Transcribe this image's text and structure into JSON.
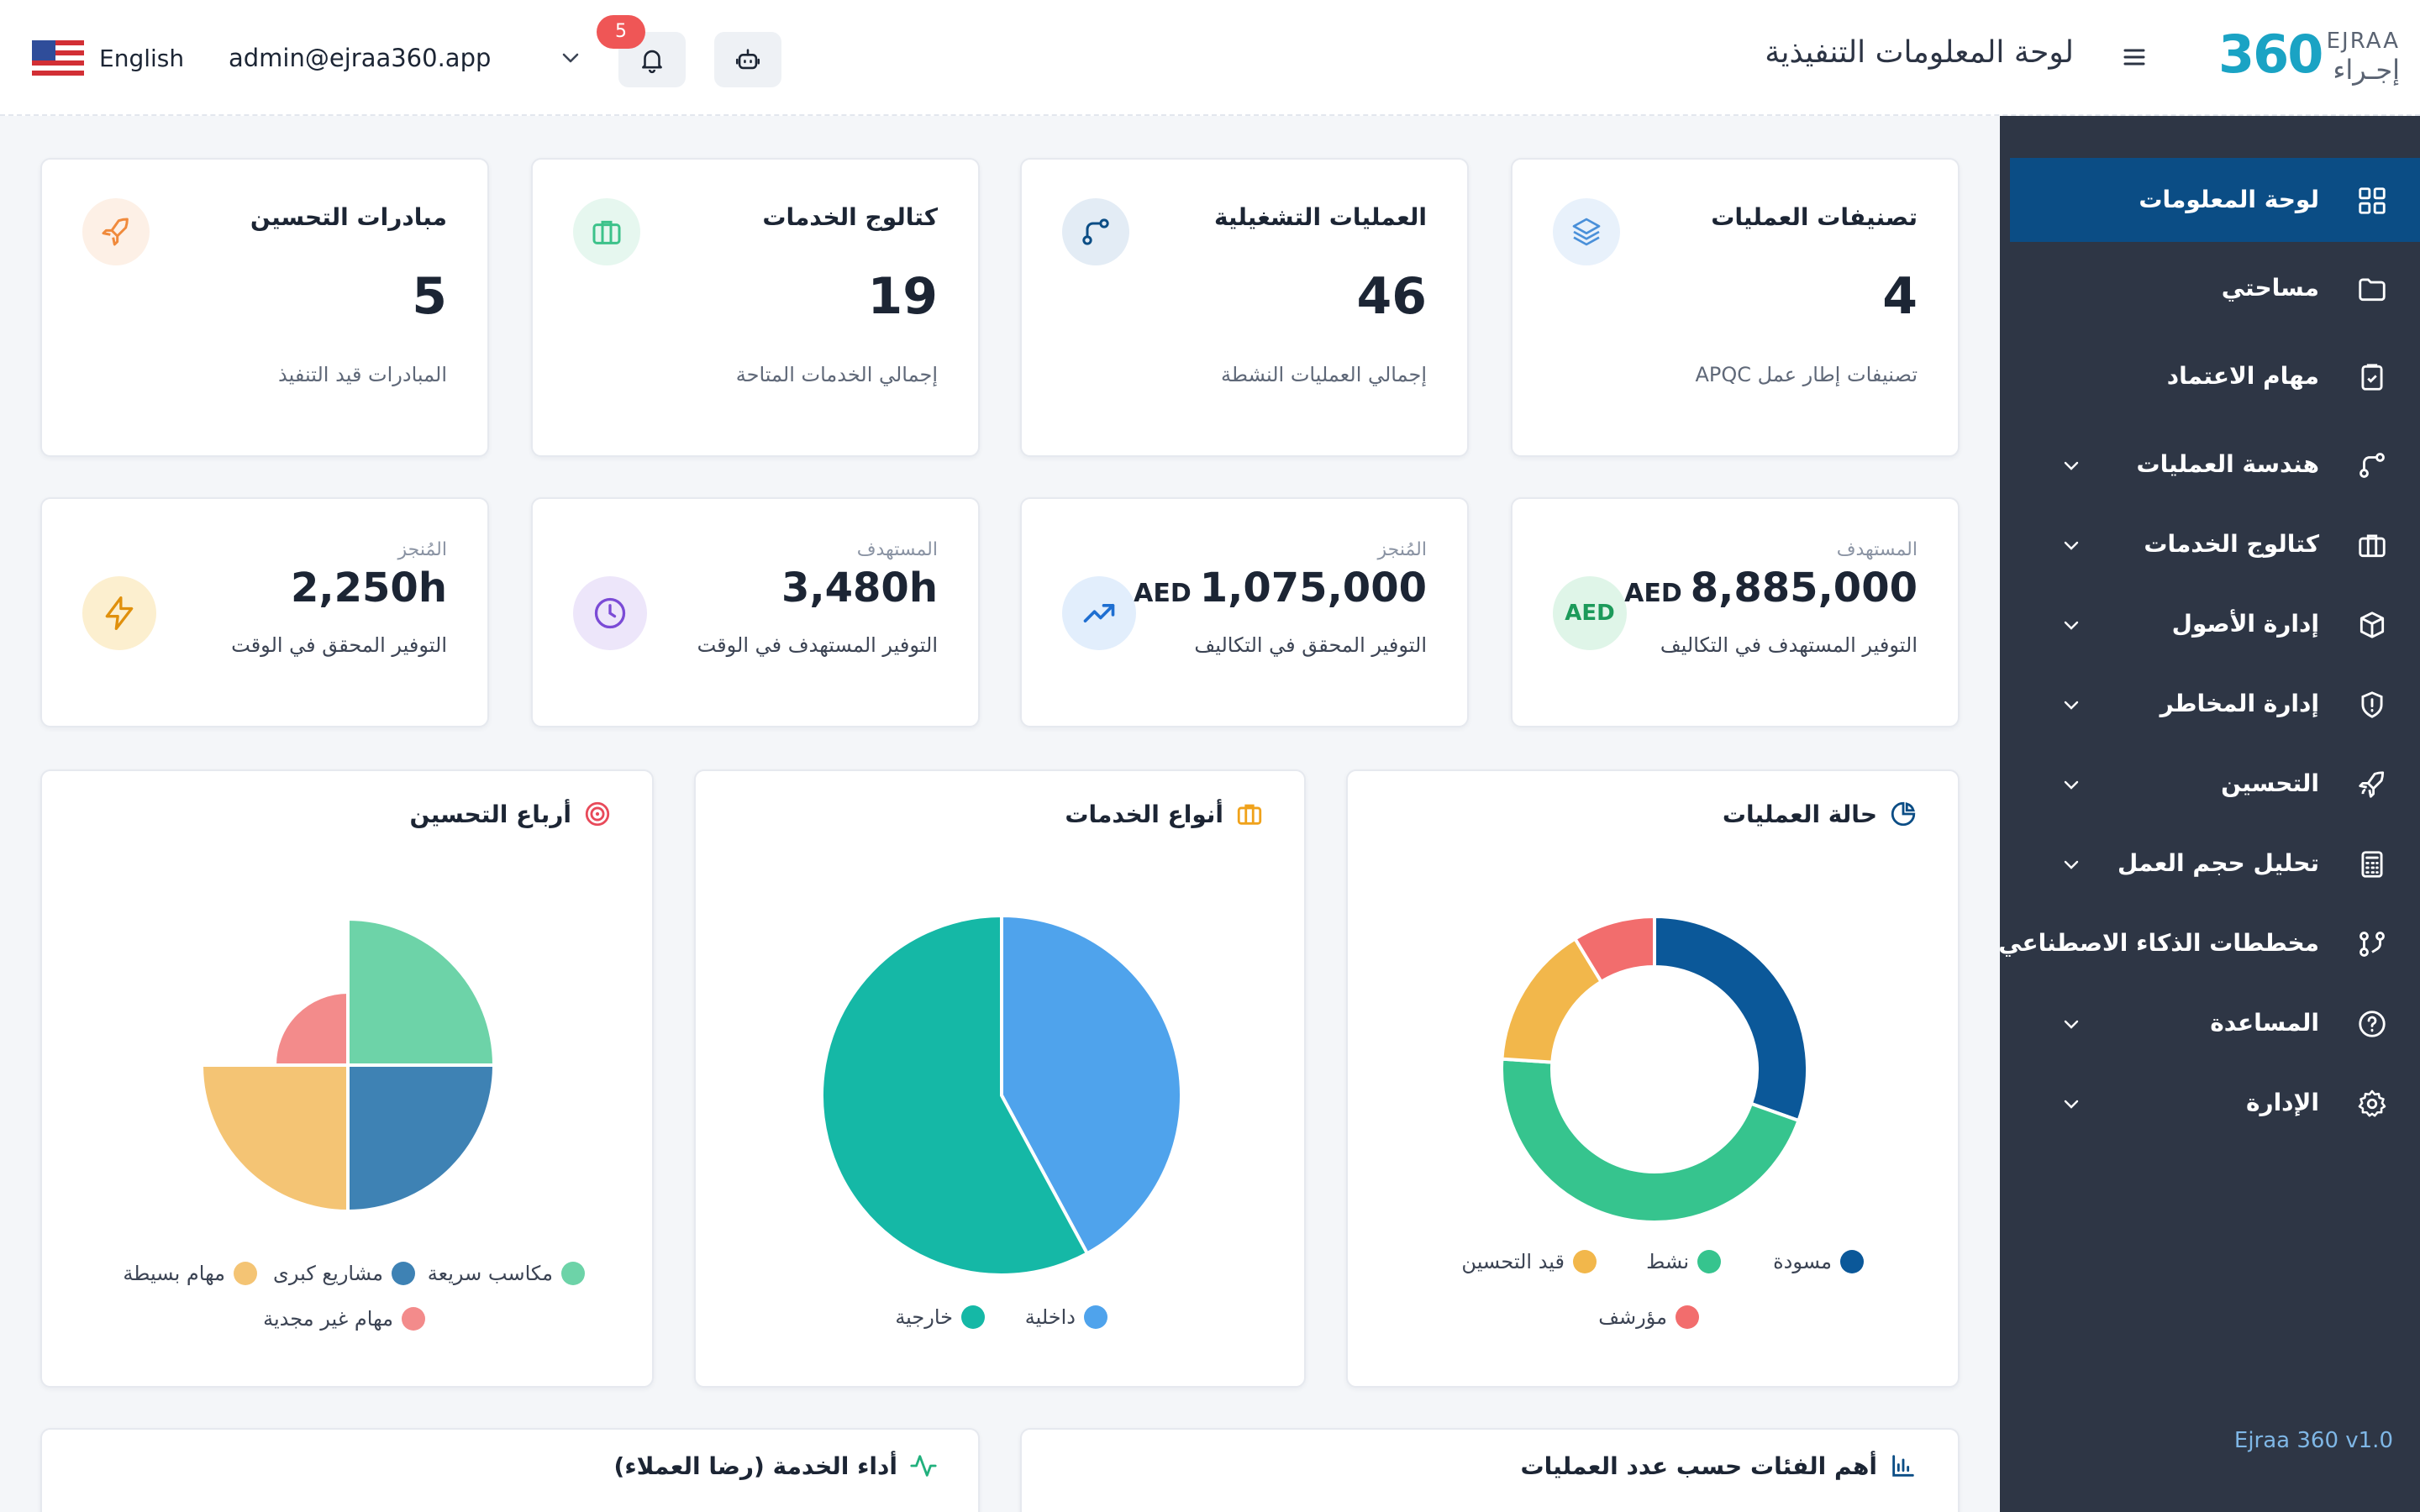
{
  "topbar": {
    "language": "English",
    "user_email": "admin@ejraa360.app",
    "notification_count": "5",
    "page_title": "لوحة المعلومات التنفيذية",
    "logo": {
      "mark": "360",
      "latin": "EJRAA",
      "arabic": "إجـراء"
    }
  },
  "sidebar": {
    "items": [
      {
        "label": "لوحة المعلومات",
        "icon": "dashboard-icon",
        "active": true,
        "expandable": false
      },
      {
        "label": "مساحتي",
        "icon": "folder-icon",
        "active": false,
        "expandable": false
      },
      {
        "label": "مهام الاعتماد",
        "icon": "clipboard-icon",
        "active": false,
        "expandable": false
      },
      {
        "label": "هندسة العمليات",
        "icon": "process-icon",
        "active": false,
        "expandable": true
      },
      {
        "label": "كتالوج الخدمات",
        "icon": "briefcase-icon",
        "active": false,
        "expandable": true
      },
      {
        "label": "إدارة الأصول",
        "icon": "box-icon",
        "active": false,
        "expandable": true
      },
      {
        "label": "إدارة المخاطر",
        "icon": "shield-icon",
        "active": false,
        "expandable": true
      },
      {
        "label": "التحسين",
        "icon": "rocket-icon",
        "active": false,
        "expandable": true
      },
      {
        "label": "تحليل حجم العمل",
        "icon": "calculator-icon",
        "active": false,
        "expandable": true
      },
      {
        "label": "مخططات الذكاء الاصطناعي",
        "icon": "ai-icon",
        "active": false,
        "expandable": false
      },
      {
        "label": "المساعدة",
        "icon": "help-icon",
        "active": false,
        "expandable": true
      },
      {
        "label": "الإدارة",
        "icon": "gear-icon",
        "active": false,
        "expandable": true
      }
    ],
    "version": "Ejraa 360 v1.0"
  },
  "stat_cards": [
    {
      "title": "تصنيفات العمليات",
      "value": "4",
      "subtitle": "تصنيفات إطار عمل APQC",
      "icon": "layers-icon",
      "color": "#4a90d9"
    },
    {
      "title": "العمليات التشغيلية",
      "value": "46",
      "subtitle": "إجمالي العمليات النشطة",
      "icon": "process-icon",
      "color": "#0b4d85"
    },
    {
      "title": "كتالوج الخدمات",
      "value": "19",
      "subtitle": "إجمالي الخدمات المتاحة",
      "icon": "briefcase-icon",
      "color": "#3cc28a"
    },
    {
      "title": "مبادرات التحسين",
      "value": "5",
      "subtitle": "المبادرات قيد التنفيذ",
      "icon": "rocket-icon",
      "color": "#f08a3c"
    }
  ],
  "metric_cards": [
    {
      "label": "المستهدف",
      "value": "8,885,000",
      "currency": "AED",
      "subtitle": "التوفير المستهدف في التكاليف",
      "icon_text": "AED",
      "color": "#1c9a5a"
    },
    {
      "label": "المُنجز",
      "value": "1,075,000",
      "currency": "AED",
      "subtitle": "التوفير المحقق في التكاليف",
      "icon": "trend-up-icon",
      "color": "#1f6fd1"
    },
    {
      "label": "المستهدف",
      "value": "3,480h",
      "currency": "",
      "subtitle": "التوفير المستهدف في الوقت",
      "icon": "clock-icon",
      "color": "#7b4bd6"
    },
    {
      "label": "المُنجز",
      "value": "2,250h",
      "currency": "",
      "subtitle": "التوفير المحقق في الوقت",
      "icon": "bolt-icon",
      "color": "#e0900c"
    }
  ],
  "charts_titles": {
    "status": "حالة العمليات",
    "types": "أنواع الخدمات",
    "quadrants": "أرباع التحسين",
    "top_categories": "أهم الفئات حسب عدد العمليات",
    "service_performance": "أداء الخدمة (رضا العملاء)"
  },
  "chart_data": [
    {
      "type": "pie",
      "title": "حالة العمليات",
      "categories": [
        "مسودة",
        "نشط",
        "قيد التحسين",
        "مؤرشف"
      ],
      "values": [
        14,
        21,
        7,
        4
      ],
      "colors": [
        "#0b5899",
        "#36c48e",
        "#f2b74b",
        "#f26d6d"
      ],
      "donut": true,
      "legend": "bottom"
    },
    {
      "type": "pie",
      "title": "أنواع الخدمات",
      "categories": [
        "داخلية",
        "خارجية"
      ],
      "values": [
        8,
        11
      ],
      "colors": [
        "#4fa3ec",
        "#15b8a6"
      ],
      "donut": false,
      "legend": "bottom"
    },
    {
      "type": "pie",
      "title": "أرباع التحسين",
      "categories": [
        "مكاسب سريعة",
        "مشاريع كبرى",
        "مهام بسيطة",
        "مهام غير مجدية"
      ],
      "values": [
        2,
        2,
        2,
        1
      ],
      "colors": [
        "#6dd3a8",
        "#3e82b4",
        "#f4c474",
        "#f38b8b"
      ],
      "polar_area": true,
      "legend": "bottom"
    }
  ]
}
